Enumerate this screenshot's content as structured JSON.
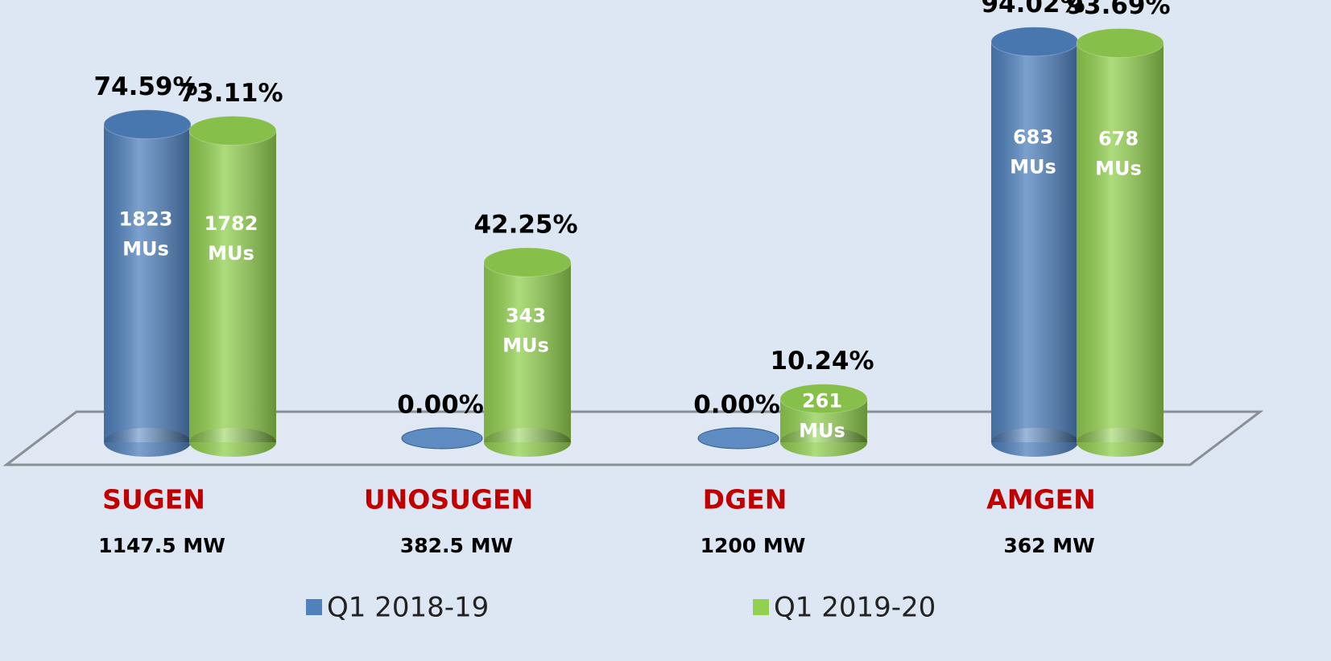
{
  "chart_data": {
    "type": "cylinder-bar",
    "categories": [
      "SUGEN",
      "UNOSUGEN",
      "DGEN",
      "AMGEN"
    ],
    "capacities": [
      "1147.5 MW",
      "382.5 MW",
      "1200 MW",
      "362 MW"
    ],
    "series": [
      {
        "name": "Q1 2018-19",
        "color": "#4f81bd",
        "values": [
          74.59,
          0,
          0,
          94.02
        ],
        "value_labels": [
          "74.59%",
          "0.00%",
          "0.00%",
          "94.02%"
        ],
        "mu_labels": [
          [
            "1823",
            "MUs"
          ],
          null,
          null,
          [
            "683",
            "MUs"
          ]
        ]
      },
      {
        "name": "Q1 2019-20",
        "color": "#92d050",
        "values": [
          73.11,
          42.25,
          10.24,
          93.69
        ],
        "value_labels": [
          "73.11%",
          "42.25%",
          "10.24%",
          "93.69%"
        ],
        "mu_labels": [
          [
            "1782",
            "MUs"
          ],
          [
            "343",
            "MUs"
          ],
          [
            "261",
            "MUs"
          ],
          [
            "678",
            "MUs"
          ]
        ]
      }
    ]
  }
}
